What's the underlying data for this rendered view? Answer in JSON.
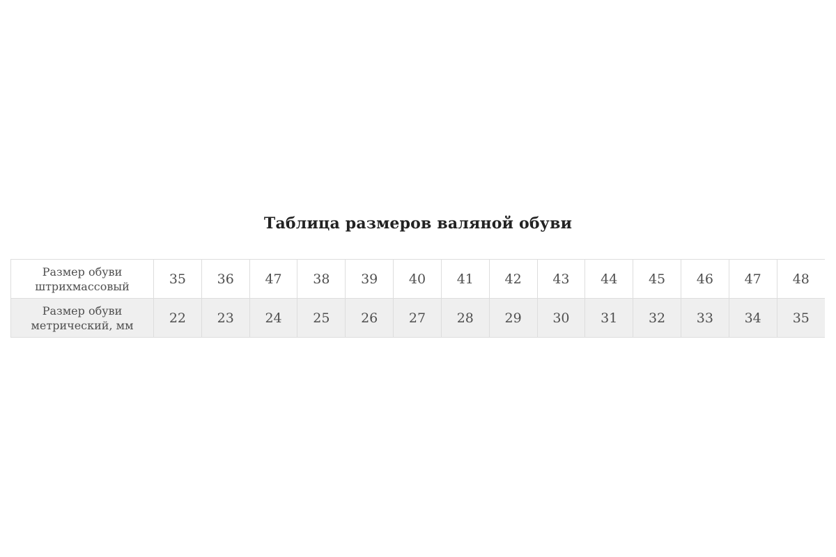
{
  "page": {
    "title": "Таблица размеров валяной обуви"
  },
  "table": {
    "rows": [
      {
        "label": "Размер обуви штрихмассовый",
        "values": [
          "35",
          "36",
          "47",
          "38",
          "39",
          "40",
          "41",
          "42",
          "43",
          "44",
          "45",
          "46",
          "47",
          "48"
        ]
      },
      {
        "label": "Размер обуви метрический, мм",
        "values": [
          "22",
          "23",
          "24",
          "25",
          "26",
          "27",
          "28",
          "29",
          "30",
          "31",
          "32",
          "33",
          "34",
          "35"
        ]
      }
    ]
  },
  "colors": {
    "alt_row_bg": "#efefef",
    "border": "#dddddd",
    "cell_text": "#4f4f4f",
    "title_text": "#222222",
    "page_bg": "#ffffff"
  }
}
